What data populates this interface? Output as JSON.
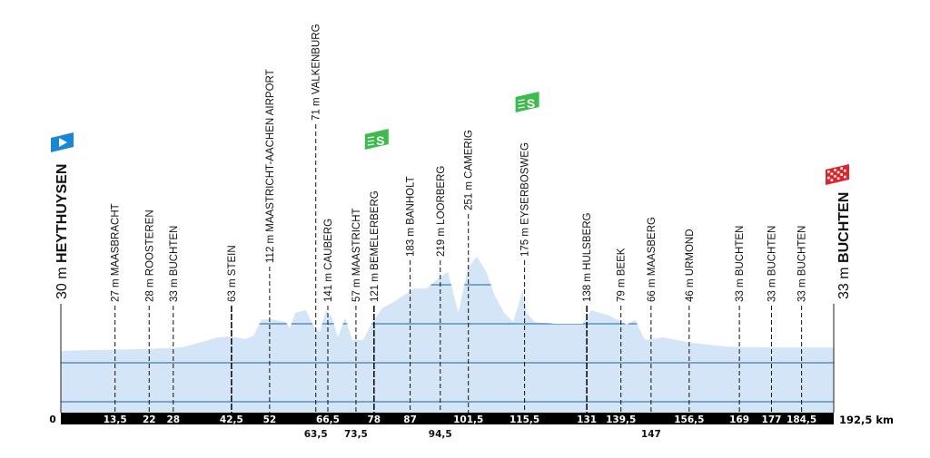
{
  "chart_data": {
    "type": "area",
    "title": "",
    "xlabel": "",
    "ylabel": "",
    "x_unit": "km",
    "xlim": [
      0,
      192.5
    ],
    "colors": {
      "fill": "#d4e5f7",
      "grade_line": "#3f80b4",
      "axis_bar": "#000000",
      "start_flag": "#1a86d6",
      "finish_flag": "#e0242c",
      "sprint": "#3dbb4c"
    },
    "start": {
      "km": 0,
      "km_label": "0",
      "elevation": "30 m",
      "name": "HEYTHUYSEN",
      "icon": "start-flag-icon"
    },
    "finish": {
      "km": 192.5,
      "km_label": "192,5 km",
      "elevation": "33 m",
      "name": "BUCHTEN",
      "icon": "finish-checkered-flag-icon"
    },
    "markers": [
      {
        "km": 13.5,
        "km_label": "13,5",
        "elevation": "27 m",
        "name": "MAASBRACHT"
      },
      {
        "km": 22,
        "km_label": "22",
        "elevation": "28 m",
        "name": "ROOSTEREN"
      },
      {
        "km": 28,
        "km_label": "28",
        "elevation": "33 m",
        "name": "BUCHTEN"
      },
      {
        "km": 42.5,
        "km_label": "42,5",
        "elevation": "63 m",
        "name": "STEIN"
      },
      {
        "km": 52,
        "km_label": "52",
        "elevation": "112 m",
        "name": "MAASTRICHT-AACHEN AIRPORT"
      },
      {
        "km": 63.5,
        "km_label": "63,5",
        "elevation": "71 m",
        "name": "VALKENBURG"
      },
      {
        "km": 66.5,
        "km_label": "66,5",
        "elevation": "141 m",
        "name": "CAUBERG"
      },
      {
        "km": 73.5,
        "km_label": "73,5",
        "elevation": "57 m",
        "name": "MAASTRICHT"
      },
      {
        "km": 78,
        "km_label": "78",
        "elevation": "121 m",
        "name": "BEMELERBERG",
        "sprint": true
      },
      {
        "km": 87,
        "km_label": "87",
        "elevation": "183 m",
        "name": "BANHOLT"
      },
      {
        "km": 94.5,
        "km_label": "94,5",
        "elevation": "219 m",
        "name": "LOORBERG"
      },
      {
        "km": 101.5,
        "km_label": "101,5",
        "elevation": "251 m",
        "name": "CAMERIG"
      },
      {
        "km": 115.5,
        "km_label": "115,5",
        "elevation": "175 m",
        "name": "EYSERBOSWEG",
        "sprint": true
      },
      {
        "km": 131,
        "km_label": "131",
        "elevation": "138 m",
        "name": "HULSBERG"
      },
      {
        "km": 139.5,
        "km_label": "139,5",
        "elevation": "79 m",
        "name": "BEEK"
      },
      {
        "km": 147,
        "km_label": "147",
        "elevation": "66 m",
        "name": "MAASBERG"
      },
      {
        "km": 156.5,
        "km_label": "156,5",
        "elevation": "46 m",
        "name": "URMOND"
      },
      {
        "km": 169,
        "km_label": "169",
        "elevation": "33 m",
        "name": "BUCHTEN"
      },
      {
        "km": 177,
        "km_label": "177",
        "elevation": "33 m",
        "name": "BUCHTEN"
      },
      {
        "km": 184.5,
        "km_label": "184,5",
        "elevation": "33 m",
        "name": "BUCHTEN"
      }
    ],
    "sprint_icon_label": "S",
    "profile": [
      [
        0,
        32
      ],
      [
        7.5,
        34
      ],
      [
        19,
        36
      ],
      [
        30,
        40
      ],
      [
        34.6,
        51
      ],
      [
        39,
        63
      ],
      [
        42.5,
        65
      ],
      [
        46,
        59
      ],
      [
        48,
        67
      ],
      [
        50,
        104
      ],
      [
        52.7,
        104
      ],
      [
        56,
        98
      ],
      [
        57,
        84
      ],
      [
        58.4,
        119
      ],
      [
        61,
        125
      ],
      [
        63,
        88
      ],
      [
        64.5,
        75
      ],
      [
        66,
        125
      ],
      [
        67.6,
        108
      ],
      [
        69,
        63
      ],
      [
        70.8,
        108
      ],
      [
        72.6,
        57
      ],
      [
        75.3,
        57
      ],
      [
        77.6,
        98
      ],
      [
        80,
        129
      ],
      [
        84,
        150
      ],
      [
        88,
        174
      ],
      [
        91,
        174
      ],
      [
        94.5,
        201
      ],
      [
        96.4,
        212
      ],
      [
        99,
        119
      ],
      [
        101.4,
        222
      ],
      [
        103.6,
        247
      ],
      [
        106,
        212
      ],
      [
        108,
        160
      ],
      [
        110.4,
        119
      ],
      [
        112.7,
        98
      ],
      [
        115,
        170
      ],
      [
        116,
        119
      ],
      [
        118,
        98
      ],
      [
        123,
        94
      ],
      [
        130,
        94
      ],
      [
        132,
        125
      ],
      [
        136.5,
        113
      ],
      [
        141,
        92
      ],
      [
        143,
        104
      ],
      [
        145.5,
        57
      ],
      [
        150,
        63
      ],
      [
        156.8,
        51
      ],
      [
        165.8,
        42
      ],
      [
        177,
        40
      ],
      [
        192.5,
        40
      ]
    ]
  }
}
